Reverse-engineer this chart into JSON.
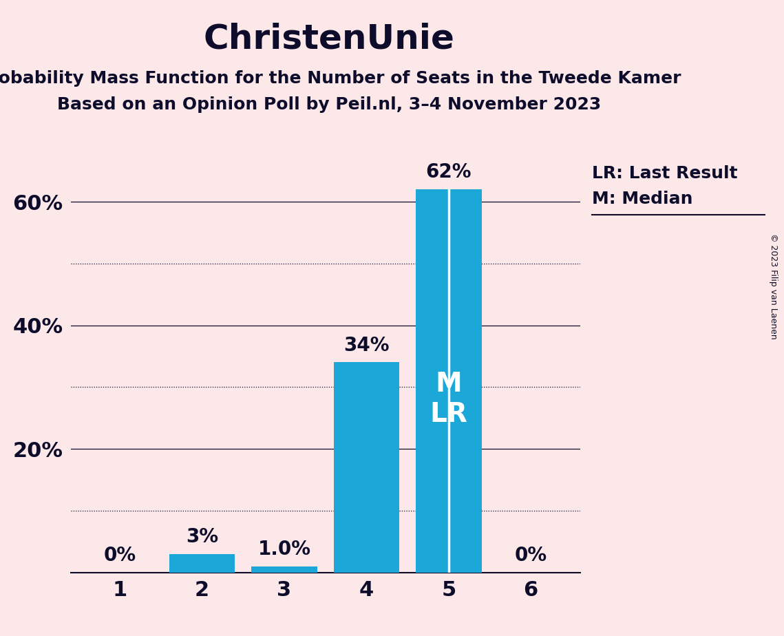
{
  "title": "ChristenUnie",
  "subtitle1": "Probability Mass Function for the Number of Seats in the Tweede Kamer",
  "subtitle2": "Based on an Opinion Poll by Peil.nl, 3–4 November 2023",
  "copyright": "© 2023 Filip van Laenen",
  "categories": [
    1,
    2,
    3,
    4,
    5,
    6
  ],
  "values": [
    0.0,
    3.0,
    1.0,
    34.0,
    62.0,
    0.0
  ],
  "bar_labels": [
    "0%",
    "3%",
    "1.0%",
    "34%",
    "62%",
    "0%"
  ],
  "bar_color": "#1ba8d8",
  "background_color": "#fce8e8",
  "text_color": "#0d0d2b",
  "median_seat": 5,
  "last_result_seat": 5,
  "ylim": [
    0,
    70
  ],
  "yticks": [
    20,
    40,
    60
  ],
  "ytick_labels": [
    "20%",
    "40%",
    "60%"
  ],
  "dotted_gridlines": [
    10,
    30,
    50
  ],
  "solid_gridlines": [
    20,
    40,
    60
  ],
  "legend_lr": "LR: Last Result",
  "legend_m": "M: Median",
  "title_fontsize": 36,
  "subtitle_fontsize": 18,
  "label_fontsize": 20,
  "tick_fontsize": 22,
  "legend_fontsize": 18,
  "inside_label_fontsize": 28,
  "copyright_fontsize": 9
}
